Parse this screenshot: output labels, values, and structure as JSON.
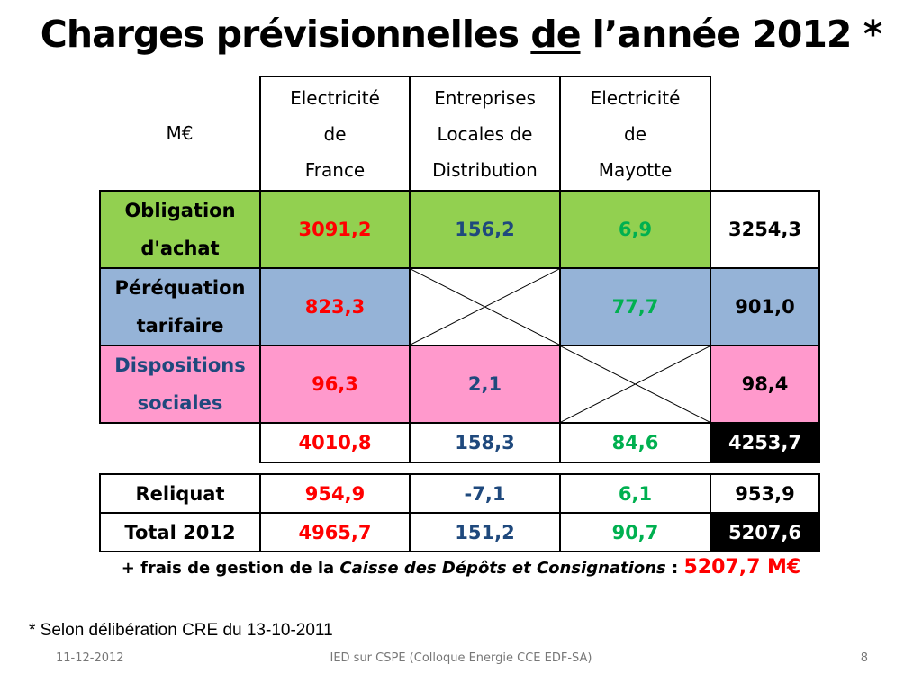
{
  "slide": {
    "title_before": "Charges prévisionnelles ",
    "title_underlined": "de",
    "title_after": " l’année 2012 *"
  },
  "table": {
    "unit_label": "M€",
    "col_headers": [
      [
        "Electricité",
        "de",
        "France"
      ],
      [
        "Entreprises",
        "Locales de",
        "Distribution"
      ],
      [
        "Electricité",
        "de",
        "Mayotte"
      ]
    ],
    "rows": [
      {
        "label": [
          "Obligation",
          "d'achat"
        ],
        "color": "#92d050",
        "values": [
          "3091,2",
          "156,2",
          "6,9"
        ],
        "total": "3254,3"
      },
      {
        "label": [
          "Péréquation",
          "tarifaire"
        ],
        "color": "#95b3d7",
        "values": [
          "823,3",
          "",
          "77,7"
        ],
        "total": "901,0"
      },
      {
        "label": [
          "Dispositions",
          "sociales"
        ],
        "color": "#ff99cc",
        "values": [
          "96,3",
          "2,1",
          ""
        ],
        "total": "98,4"
      }
    ],
    "column_totals": [
      "4010,8",
      "158,3",
      "84,6",
      "4253,7"
    ],
    "value_colors": [
      "#ff0000",
      "#1f497d",
      "#00b050",
      "#000000"
    ]
  },
  "summary": {
    "rows": [
      {
        "label": "Reliquat",
        "values": [
          "954,9",
          "-7,1",
          "6,1",
          "953,9"
        ]
      },
      {
        "label": "Total 2012",
        "values": [
          "4965,7",
          "151,2",
          "90,7",
          "5207,6"
        ]
      }
    ]
  },
  "fees_note": {
    "prefix": "+ frais de gestion de la ",
    "italic": "Caisse des Dépôts et Consignations",
    "separator": " : ",
    "amount": "5207,7 M€"
  },
  "cre_note": "* Selon délibération CRE du 13-10-2011",
  "footer": {
    "date": "11-12-2012",
    "center": "IED sur CSPE (Colloque Energie CCE EDF-SA)",
    "page": "8"
  }
}
